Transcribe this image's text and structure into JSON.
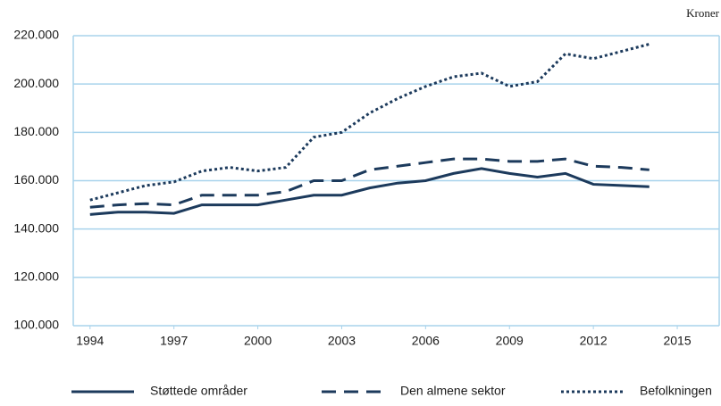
{
  "chart_data": {
    "type": "line",
    "unit_label": "Kroner",
    "x": [
      1994,
      1995,
      1996,
      1997,
      1998,
      1999,
      2000,
      2001,
      2002,
      2003,
      2004,
      2005,
      2006,
      2007,
      2008,
      2009,
      2010,
      2011,
      2012,
      2013,
      2014
    ],
    "series": [
      {
        "name": "Støttede områder",
        "color": "#1c3a5c",
        "dash": "solid",
        "values": [
          146000,
          147000,
          147000,
          146500,
          150000,
          150000,
          150000,
          152000,
          154000,
          154000,
          157000,
          159000,
          160000,
          163000,
          165000,
          163000,
          161500,
          163000,
          158500,
          158000,
          157500
        ]
      },
      {
        "name": "Den almene sektor",
        "color": "#1c3a5c",
        "dash": "dashed",
        "values": [
          149000,
          150000,
          150500,
          150000,
          154000,
          154000,
          154000,
          155500,
          160000,
          160000,
          164500,
          166000,
          167500,
          169000,
          169000,
          168000,
          168000,
          169000,
          166000,
          165500,
          164500
        ]
      },
      {
        "name": "Befolkningen",
        "color": "#1c3a5c",
        "dash": "dotted",
        "values": [
          152000,
          155000,
          158000,
          159500,
          164000,
          165500,
          164000,
          165500,
          178000,
          180000,
          188000,
          194000,
          199000,
          203000,
          204500,
          199000,
          201000,
          212500,
          210500,
          213500,
          216500
        ]
      }
    ],
    "xlim": [
      1993.4,
      2016.5
    ],
    "xticks": [
      1994,
      1997,
      2000,
      2003,
      2006,
      2009,
      2012,
      2015
    ],
    "ylim": [
      100000,
      220000
    ],
    "yticks": [
      {
        "value": 100000,
        "label": "100.000"
      },
      {
        "value": 120000,
        "label": "120.000"
      },
      {
        "value": 140000,
        "label": "140.000"
      },
      {
        "value": 160000,
        "label": "160.000"
      },
      {
        "value": 180000,
        "label": "180.000"
      },
      {
        "value": 200000,
        "label": "200.000"
      },
      {
        "value": 220000,
        "label": "220.000"
      }
    ],
    "grid": true,
    "legend": "bottom"
  }
}
